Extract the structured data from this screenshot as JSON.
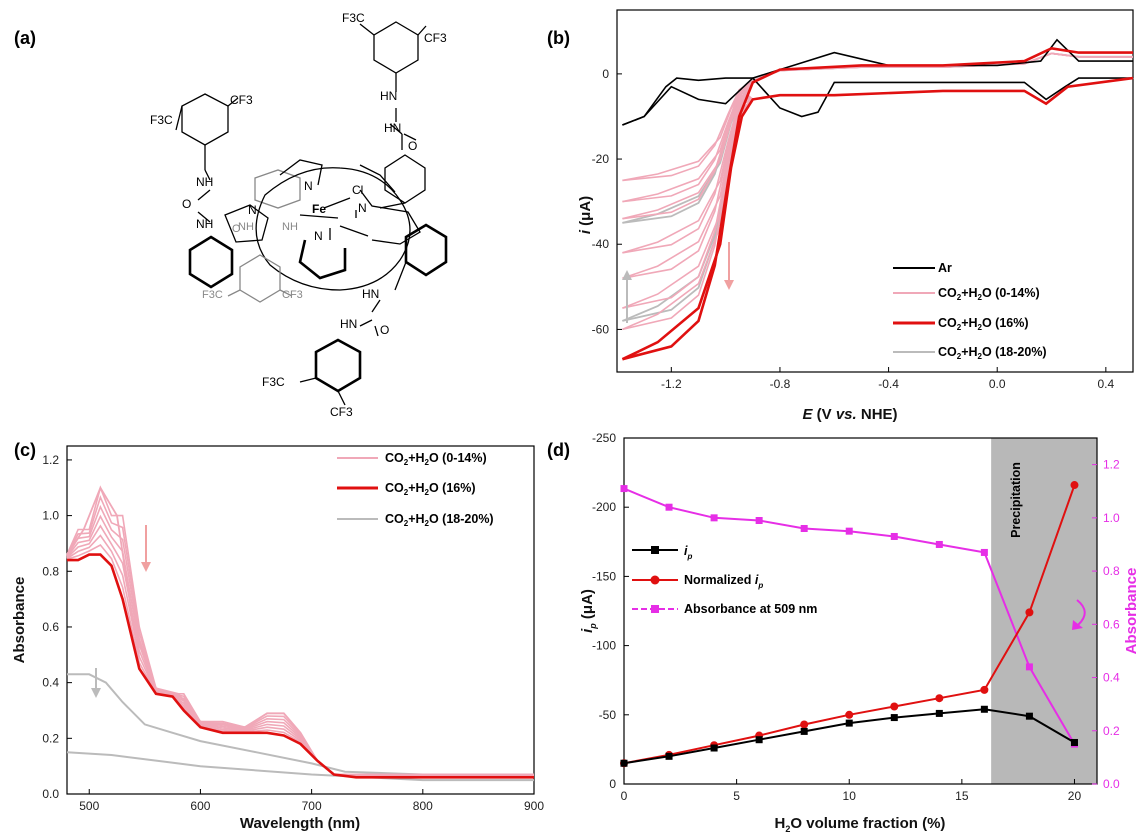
{
  "panel_labels": {
    "a": "(a)",
    "b": "(b)",
    "c": "(c)",
    "d": "(d)"
  },
  "molecule": {
    "labels": [
      "F3C",
      "CF3",
      "F3C",
      "CF3",
      "HN",
      "HN",
      "O",
      "NH",
      "O",
      "NH",
      "N",
      "N",
      "N",
      "N",
      "Fe",
      "Cl",
      "NH",
      "O",
      "NH",
      "F3C",
      "CF3",
      "HN",
      "HN",
      "O",
      "F3C",
      "CF3"
    ],
    "colors": {
      "bond": "#000000",
      "back": "#888888"
    }
  },
  "chart_data": [
    {
      "id": "b",
      "type": "line",
      "xlabel": "E (V vs. NHE)",
      "ylabel": "i (μA)",
      "xlim": [
        -1.4,
        0.5
      ],
      "ylim": [
        -70,
        15
      ],
      "xticks": [
        "-1.2",
        "-0.8",
        "-0.4",
        "0.0",
        "0.4"
      ],
      "yticks": [
        "0",
        "-20",
        "-40",
        "-60"
      ],
      "legend": [
        "Ar",
        "CO2+H2O (0-14%)",
        "CO2+H2O (16%)",
        "CO2+H2O (18-20%)"
      ],
      "legend_placement": "bottom-right",
      "colors": {
        "ar": "#000000",
        "light": "#f0a8b8",
        "red": "#e01010",
        "gray": "#bbbbbb"
      },
      "series": [
        {
          "name": "Ar",
          "color": "#000000",
          "forward": [
            [
              -1.38,
              -12
            ],
            [
              -1.3,
              -10
            ],
            [
              -1.22,
              -3
            ],
            [
              -1.18,
              -1
            ],
            [
              -1.1,
              -1.5
            ],
            [
              -1.0,
              -1
            ],
            [
              -0.9,
              -1
            ],
            [
              -0.8,
              -8
            ],
            [
              -0.72,
              -10
            ],
            [
              -0.66,
              -9
            ],
            [
              -0.6,
              -2
            ],
            [
              -0.4,
              -2
            ],
            [
              -0.2,
              -2
            ],
            [
              0.1,
              -2
            ],
            [
              0.18,
              -6
            ],
            [
              0.25,
              -3
            ],
            [
              0.3,
              -1
            ],
            [
              0.5,
              -1
            ]
          ],
          "reverse": [
            [
              0.5,
              3
            ],
            [
              0.3,
              3
            ],
            [
              0.22,
              8
            ],
            [
              0.16,
              3
            ],
            [
              0.0,
              2
            ],
            [
              -0.4,
              2
            ],
            [
              -0.6,
              5
            ],
            [
              -0.7,
              3
            ],
            [
              -0.8,
              1
            ],
            [
              -0.9,
              -1
            ],
            [
              -1.0,
              -7
            ],
            [
              -1.1,
              -6
            ],
            [
              -1.2,
              -3
            ],
            [
              -1.3,
              -10
            ],
            [
              -1.38,
              -12
            ]
          ]
        },
        {
          "name": "CO2+H2O (16%)",
          "color": "#e01010",
          "forward": [
            [
              -1.38,
              -67
            ],
            [
              -1.25,
              -63
            ],
            [
              -1.1,
              -55
            ],
            [
              -1.02,
              -40
            ],
            [
              -0.98,
              -22
            ],
            [
              -0.94,
              -10
            ],
            [
              -0.9,
              -6
            ],
            [
              -0.8,
              -5
            ],
            [
              -0.6,
              -5
            ],
            [
              -0.2,
              -4
            ],
            [
              0.1,
              -4
            ],
            [
              0.18,
              -7
            ],
            [
              0.26,
              -3
            ],
            [
              0.5,
              -1
            ]
          ],
          "reverse": [
            [
              0.5,
              5
            ],
            [
              0.3,
              5
            ],
            [
              0.2,
              6
            ],
            [
              0.1,
              3
            ],
            [
              -0.2,
              2
            ],
            [
              -0.5,
              2
            ],
            [
              -0.8,
              1
            ],
            [
              -0.9,
              -2
            ],
            [
              -0.95,
              -10
            ],
            [
              -0.99,
              -25
            ],
            [
              -1.04,
              -45
            ],
            [
              -1.1,
              -58
            ],
            [
              -1.2,
              -64
            ],
            [
              -1.38,
              -67
            ]
          ]
        },
        {
          "name": "CO2+H2O (0-14%)",
          "color": "#f0a8b8",
          "endpoints": [
            -25,
            -30,
            -34,
            -42,
            -48,
            -55,
            -60
          ]
        },
        {
          "name": "CO2+H2O (18-20%)",
          "color": "#bbbbbb",
          "endpoints": [
            -35,
            -58
          ]
        }
      ]
    },
    {
      "id": "c",
      "type": "line",
      "xlabel": "Wavelength (nm)",
      "ylabel": "Absorbance",
      "xlim": [
        480,
        900
      ],
      "ylim": [
        0,
        1.25
      ],
      "xticks": [
        "500",
        "600",
        "700",
        "800",
        "900"
      ],
      "yticks": [
        "0.0",
        "0.2",
        "0.4",
        "0.6",
        "0.8",
        "1.0",
        "1.2"
      ],
      "legend": [
        "CO2+H2O (0-14%)",
        "CO2+H2O (16%)",
        "CO2+H2O (18-20%)"
      ],
      "legend_placement": "top-right",
      "series": [
        {
          "name": "CO2+H2O (16%)",
          "color": "#e01010",
          "points": [
            [
              480,
              0.84
            ],
            [
              490,
              0.84
            ],
            [
              500,
              0.86
            ],
            [
              510,
              0.86
            ],
            [
              520,
              0.82
            ],
            [
              530,
              0.7
            ],
            [
              545,
              0.45
            ],
            [
              560,
              0.36
            ],
            [
              575,
              0.35
            ],
            [
              585,
              0.3
            ],
            [
              600,
              0.24
            ],
            [
              620,
              0.22
            ],
            [
              640,
              0.22
            ],
            [
              660,
              0.22
            ],
            [
              675,
              0.21
            ],
            [
              690,
              0.18
            ],
            [
              705,
              0.12
            ],
            [
              720,
              0.07
            ],
            [
              740,
              0.06
            ],
            [
              800,
              0.06
            ],
            [
              900,
              0.06
            ]
          ]
        },
        {
          "name": "CO2+H2O (0-14%) peak",
          "color": "#f0a8b8",
          "points": [
            [
              480,
              0.86
            ],
            [
              495,
              0.95
            ],
            [
              510,
              1.1
            ],
            [
              525,
              1.0
            ],
            [
              540,
              0.6
            ],
            [
              560,
              0.38
            ],
            [
              580,
              0.36
            ],
            [
              600,
              0.26
            ],
            [
              640,
              0.24
            ],
            [
              660,
              0.29
            ],
            [
              675,
              0.29
            ],
            [
              690,
              0.22
            ],
            [
              705,
              0.12
            ],
            [
              720,
              0.07
            ],
            [
              800,
              0.07
            ],
            [
              900,
              0.07
            ]
          ]
        },
        {
          "name": "CO2+H2O (18-20%) upper",
          "color": "#bbbbbb",
          "points": [
            [
              480,
              0.43
            ],
            [
              500,
              0.43
            ],
            [
              515,
              0.4
            ],
            [
              530,
              0.33
            ],
            [
              550,
              0.25
            ],
            [
              575,
              0.22
            ],
            [
              600,
              0.19
            ],
            [
              650,
              0.15
            ],
            [
              700,
              0.11
            ],
            [
              730,
              0.08
            ],
            [
              800,
              0.07
            ],
            [
              900,
              0.07
            ]
          ]
        },
        {
          "name": "CO2+H2O (18-20%) lower",
          "color": "#bbbbbb",
          "points": [
            [
              480,
              0.15
            ],
            [
              520,
              0.14
            ],
            [
              560,
              0.12
            ],
            [
              600,
              0.1
            ],
            [
              700,
              0.07
            ],
            [
              800,
              0.05
            ],
            [
              900,
              0.05
            ]
          ]
        }
      ]
    },
    {
      "id": "d",
      "type": "line",
      "xlabel": "H2O volume fraction (%)",
      "ylabel": "i p (μA)",
      "y2label": "Absorbance",
      "xlim": [
        0,
        21
      ],
      "ylim": [
        0,
        -250
      ],
      "y2lim": [
        0,
        1.3
      ],
      "xticks": [
        "0",
        "5",
        "10",
        "15",
        "20"
      ],
      "yticks": [
        "0",
        "-50",
        "-100",
        "-150",
        "-200",
        "-250"
      ],
      "y2ticks": [
        "0.0",
        "0.2",
        "0.4",
        "0.6",
        "0.8",
        "1.0",
        "1.2"
      ],
      "annotation": "Precipitation",
      "legend": [
        "i p",
        "Normalized i p",
        "Absorbance at 509 nm"
      ],
      "legend_placement": "center-left",
      "x": [
        0,
        2,
        4,
        6,
        8,
        10,
        12,
        14,
        16,
        18,
        20
      ],
      "series": [
        {
          "name": "i p",
          "color": "#000000",
          "values": [
            -15,
            -20,
            -26,
            -32,
            -38,
            -44,
            -48,
            -51,
            -54,
            -49,
            -30
          ]
        },
        {
          "name": "Normalized i p",
          "color": "#e01010",
          "values": [
            -15,
            -21,
            -28,
            -35,
            -43,
            -50,
            -56,
            -62,
            -68,
            -124,
            -216
          ]
        },
        {
          "name": "Absorbance at 509 nm",
          "color": "#e62ee6",
          "values": [
            1.11,
            1.04,
            1.0,
            0.99,
            0.96,
            0.95,
            0.93,
            0.9,
            0.87,
            0.44,
            0.15
          ]
        }
      ]
    }
  ]
}
